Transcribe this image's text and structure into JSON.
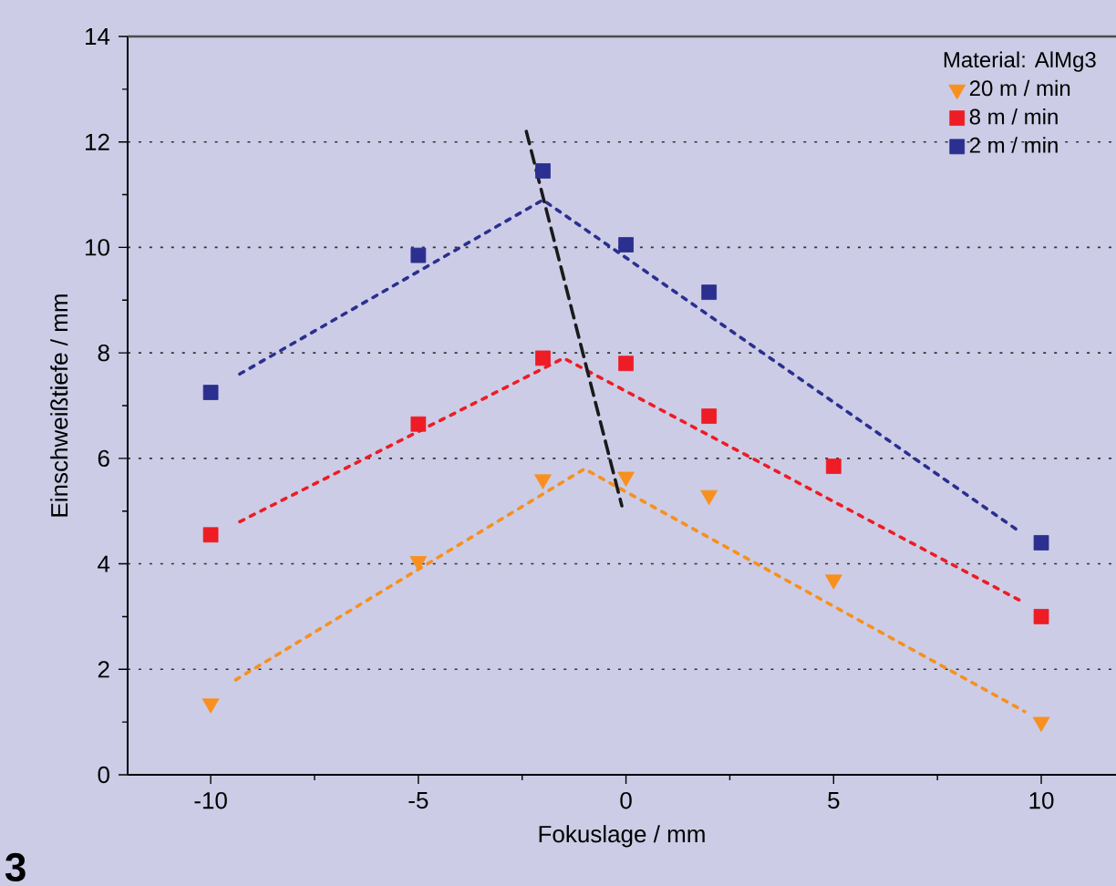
{
  "chart_data": {
    "type": "scatter",
    "xlabel": "Fokuslage / mm",
    "ylabel": "Einschweißtiefe / mm",
    "legend_title": "Material: AlMg3",
    "legend": "top right",
    "grid": "y",
    "xlim": [
      -12,
      11.8
    ],
    "ylim": [
      0,
      14
    ],
    "xticks": [
      -10,
      -5,
      0,
      5,
      10
    ],
    "yticks": [
      0,
      2,
      4,
      6,
      8,
      10,
      12,
      14
    ],
    "annotations": [
      "3"
    ],
    "series": [
      {
        "type": "line",
        "color": "#2b2f8f",
        "line_style": "dotted",
        "marker": "none",
        "x": [
          -9.3,
          -2,
          9.5
        ],
        "values": [
          7.6,
          10.9,
          4.6
        ]
      },
      {
        "type": "line",
        "color": "#ee1c25",
        "line_style": "dotted",
        "marker": "none",
        "x": [
          -9.3,
          -1.5,
          9.5
        ],
        "values": [
          4.8,
          7.9,
          3.3
        ]
      },
      {
        "type": "line",
        "color": "#f7901e",
        "line_style": "dotted",
        "marker": "none",
        "x": [
          -9.4,
          -1,
          9.6
        ],
        "values": [
          1.8,
          5.8,
          1.2
        ]
      },
      {
        "type": "line",
        "color": "#1a1a1a",
        "line_style": "dashed",
        "marker": "none",
        "x": [
          -2.4,
          -0.1
        ],
        "values": [
          12.2,
          5.1
        ]
      },
      {
        "name": "20 m / min",
        "color": "#f7901e",
        "marker": "triangle",
        "x": [
          -10,
          -5,
          -2,
          0,
          2,
          5,
          10
        ],
        "values": [
          1.35,
          4.05,
          5.6,
          5.65,
          5.3,
          3.7,
          1.0
        ]
      },
      {
        "name": "8 m / min",
        "color": "#ee1c25",
        "marker": "square",
        "x": [
          -10,
          -5,
          -2,
          0,
          2,
          5,
          10
        ],
        "values": [
          4.55,
          6.65,
          7.9,
          7.8,
          6.8,
          5.85,
          3.0
        ]
      },
      {
        "name": "2 m / min",
        "color": "#2b2f8f",
        "marker": "square",
        "x": [
          -10,
          -5,
          -2,
          0,
          2,
          10
        ],
        "values": [
          7.25,
          9.85,
          11.45,
          10.05,
          9.15,
          4.4
        ]
      }
    ]
  }
}
